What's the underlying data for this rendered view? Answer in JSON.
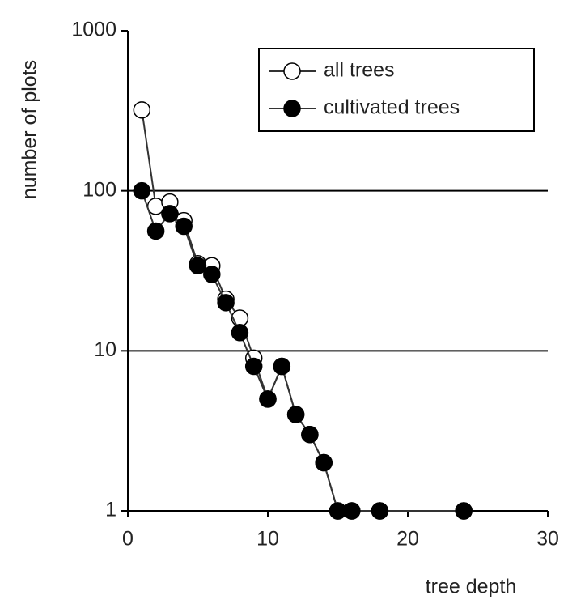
{
  "chart_data": {
    "type": "line",
    "x_label": "tree depth",
    "y_label": "number of plots",
    "log_y": true,
    "grid": true,
    "legend": "upper right",
    "x": [
      1,
      2,
      3,
      4,
      5,
      6,
      7,
      8,
      9,
      10,
      11,
      12,
      13,
      14,
      15,
      16,
      18,
      24
    ],
    "series": [
      {
        "name": "all trees",
        "color": "#ffffff",
        "values": [
          320,
          80,
          85,
          65,
          35,
          34,
          21,
          16,
          9,
          5,
          8,
          4,
          3,
          2,
          1,
          1,
          1,
          1
        ]
      },
      {
        "name": "cultivated trees",
        "color": "#000000",
        "values": [
          100,
          56,
          72,
          60,
          34,
          30,
          20,
          13,
          8,
          5,
          8,
          4,
          3,
          2,
          1,
          1,
          1,
          1
        ]
      }
    ],
    "xlim": [
      0,
      30
    ],
    "xticks": [
      0,
      10,
      20,
      30
    ],
    "ylim": [
      1,
      1000
    ],
    "yticks": [
      1,
      10,
      100,
      1000
    ]
  }
}
